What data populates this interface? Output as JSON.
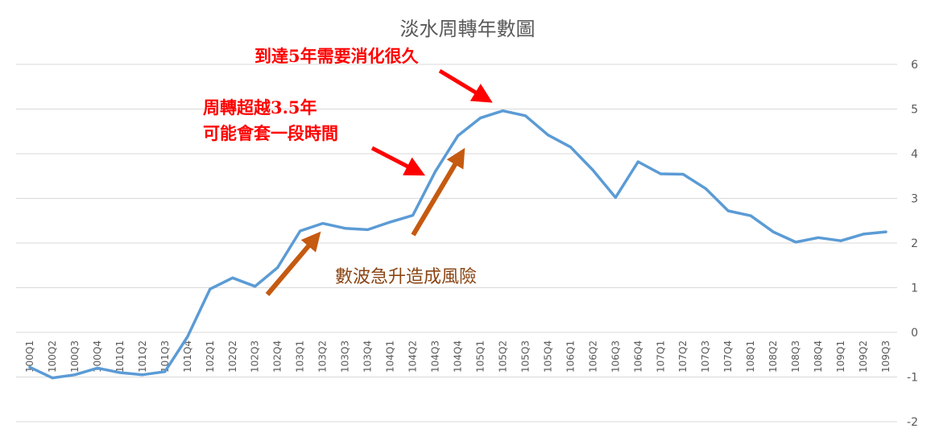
{
  "chart_data": {
    "type": "line",
    "title": "淡水周轉年數圖",
    "ylim": [
      -2,
      6
    ],
    "yticks": [
      -2,
      -1,
      0,
      1,
      2,
      3,
      4,
      5,
      6
    ],
    "y_axis_side": "right",
    "grid": "horizontal",
    "legend": "none",
    "categories": [
      "100Q1",
      "100Q2",
      "100Q3",
      "100Q4",
      "101Q1",
      "101Q2",
      "101Q3",
      "101Q4",
      "102Q1",
      "102Q2",
      "102Q3",
      "102Q4",
      "103Q1",
      "103Q2",
      "103Q3",
      "103Q4",
      "104Q1",
      "104Q2",
      "104Q3",
      "104Q4",
      "105Q1",
      "105Q2",
      "105Q3",
      "105Q4",
      "106Q1",
      "106Q2",
      "106Q3",
      "106Q4",
      "107Q1",
      "107Q2",
      "107Q3",
      "107Q4",
      "108Q1",
      "108Q2",
      "108Q3",
      "108Q4",
      "109Q1",
      "109Q2",
      "109Q3"
    ],
    "series": [
      {
        "values": [
          -0.78,
          -1.02,
          -0.95,
          -0.8,
          -0.9,
          -0.95,
          -0.88,
          -0.1,
          0.97,
          1.22,
          1.03,
          1.45,
          2.27,
          2.44,
          2.33,
          2.3,
          2.47,
          2.62,
          3.6,
          4.4,
          4.8,
          4.96,
          4.85,
          4.42,
          4.15,
          3.63,
          3.02,
          3.82,
          3.55,
          3.54,
          3.22,
          2.72,
          2.61,
          2.25,
          2.02,
          2.12,
          2.05,
          2.2,
          2.25
        ]
      }
    ],
    "annotations": {
      "five_years": "到達5年需要消化很久",
      "over_35_line1": "周轉超越3.5年",
      "over_35_line2": "可能會套一段時間",
      "surge_risk": "數波急升造成風險"
    }
  },
  "colors": {
    "line": "#5b9bd5",
    "grid": "#d9d9d9",
    "tick_text": "#595959",
    "red_annotation": "#ff0000",
    "red_arrow": "#ff0000",
    "brown_annotation": "#8b4513",
    "brown_arrow": "#c55a11"
  }
}
